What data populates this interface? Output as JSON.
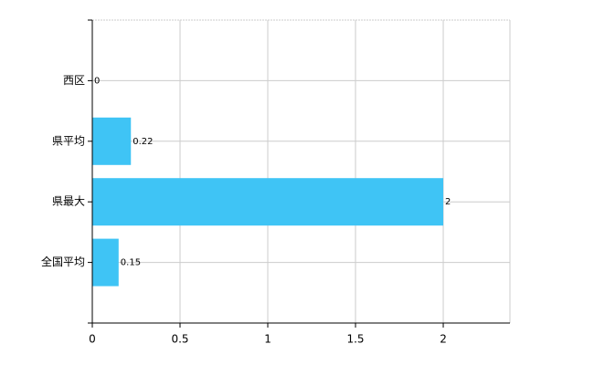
{
  "chart_data": {
    "type": "barh",
    "categories": [
      "西区",
      "県平均",
      "県最大",
      "全国平均"
    ],
    "values": [
      0,
      0.22,
      2,
      0.15
    ],
    "color": "#3fc4f5",
    "xlim": [
      0,
      2.38
    ],
    "xticks": [
      0,
      0.5,
      1,
      1.5,
      2
    ],
    "grid": true
  }
}
